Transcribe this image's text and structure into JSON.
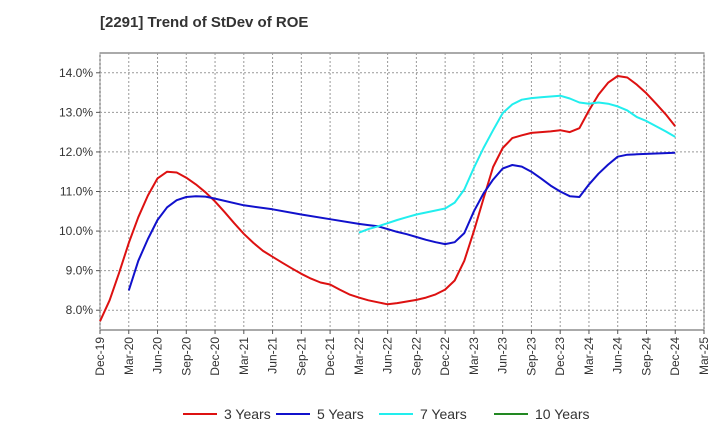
{
  "chart_data": {
    "type": "line",
    "title": "[2291]  Trend of StDev of ROE",
    "xlabel": "",
    "ylabel": "",
    "ylim": [
      7.5,
      14.5
    ],
    "yticks": [
      8.0,
      9.0,
      10.0,
      11.0,
      12.0,
      13.0,
      14.0
    ],
    "ytick_labels": [
      "8.0%",
      "9.0%",
      "10.0%",
      "11.0%",
      "12.0%",
      "13.0%",
      "14.0%"
    ],
    "xticks": [
      "Dec-19",
      "Mar-20",
      "Jun-20",
      "Sep-20",
      "Dec-20",
      "Mar-21",
      "Jun-21",
      "Sep-21",
      "Dec-21",
      "Mar-22",
      "Jun-22",
      "Sep-22",
      "Dec-22",
      "Mar-23",
      "Jun-23",
      "Sep-23",
      "Dec-23",
      "Mar-24",
      "Jun-24",
      "Sep-24",
      "Dec-24",
      "Mar-25"
    ],
    "grid": true,
    "legend_position": "bottom",
    "series": [
      {
        "name": "3 Years",
        "color": "#dd1111",
        "x": [
          "2019-12",
          "2020-01",
          "2020-02",
          "2020-03",
          "2020-04",
          "2020-05",
          "2020-06",
          "2020-07",
          "2020-08",
          "2020-09",
          "2020-10",
          "2020-11",
          "2020-12",
          "2021-01",
          "2021-02",
          "2021-03",
          "2021-04",
          "2021-05",
          "2021-06",
          "2021-07",
          "2021-08",
          "2021-09",
          "2021-10",
          "2021-11",
          "2021-12",
          "2022-01",
          "2022-02",
          "2022-03",
          "2022-04",
          "2022-05",
          "2022-06",
          "2022-07",
          "2022-08",
          "2022-09",
          "2022-10",
          "2022-11",
          "2022-12",
          "2023-01",
          "2023-02",
          "2023-03",
          "2023-04",
          "2023-05",
          "2023-06",
          "2023-07",
          "2023-08",
          "2023-09",
          "2023-10",
          "2023-11",
          "2023-12",
          "2024-01",
          "2024-02",
          "2024-03",
          "2024-04",
          "2024-05",
          "2024-06",
          "2024-07",
          "2024-08",
          "2024-09",
          "2024-10",
          "2024-11",
          "2024-12"
        ],
        "values": [
          7.72,
          8.25,
          8.95,
          9.7,
          10.35,
          10.9,
          11.33,
          11.5,
          11.48,
          11.35,
          11.18,
          10.98,
          10.75,
          10.48,
          10.2,
          9.93,
          9.7,
          9.5,
          9.35,
          9.2,
          9.06,
          8.92,
          8.8,
          8.7,
          8.65,
          8.52,
          8.4,
          8.32,
          8.25,
          8.2,
          8.15,
          8.18,
          8.22,
          8.26,
          8.32,
          8.4,
          8.52,
          8.75,
          9.25,
          10.0,
          10.82,
          11.62,
          12.1,
          12.35,
          12.42,
          12.48,
          12.5,
          12.52,
          12.55,
          12.5,
          12.6,
          13.05,
          13.45,
          13.75,
          13.92,
          13.88,
          13.7,
          13.48,
          13.22,
          12.95,
          12.65
        ]
      },
      {
        "name": "5 Years",
        "color": "#1111cc",
        "x": [
          "2020-03",
          "2020-04",
          "2020-05",
          "2020-06",
          "2020-07",
          "2020-08",
          "2020-09",
          "2020-10",
          "2020-11",
          "2020-12",
          "2021-03",
          "2021-06",
          "2021-09",
          "2021-12",
          "2022-03",
          "2022-04",
          "2022-05",
          "2022-06",
          "2022-07",
          "2022-08",
          "2022-09",
          "2022-10",
          "2022-11",
          "2022-12",
          "2023-01",
          "2023-02",
          "2023-03",
          "2023-04",
          "2023-05",
          "2023-06",
          "2023-07",
          "2023-08",
          "2023-09",
          "2023-10",
          "2023-11",
          "2023-12",
          "2024-01",
          "2024-02",
          "2024-03",
          "2024-04",
          "2024-05",
          "2024-06",
          "2024-07",
          "2024-08",
          "2024-09",
          "2024-10",
          "2024-11",
          "2024-12"
        ],
        "values": [
          8.5,
          9.25,
          9.8,
          10.28,
          10.6,
          10.78,
          10.86,
          10.88,
          10.87,
          10.82,
          10.65,
          10.55,
          10.42,
          10.3,
          10.18,
          10.15,
          10.12,
          10.05,
          9.98,
          9.92,
          9.85,
          9.78,
          9.72,
          9.67,
          9.72,
          9.95,
          10.5,
          10.95,
          11.3,
          11.58,
          11.67,
          11.63,
          11.5,
          11.33,
          11.15,
          11.0,
          10.88,
          10.86,
          11.18,
          11.45,
          11.68,
          11.88,
          11.93,
          11.94,
          11.95,
          11.96,
          11.97,
          11.98
        ]
      },
      {
        "name": "7 Years",
        "color": "#22eeee",
        "x": [
          "2022-03",
          "2022-04",
          "2022-05",
          "2022-06",
          "2022-07",
          "2022-08",
          "2022-09",
          "2022-10",
          "2022-11",
          "2022-12",
          "2023-01",
          "2023-02",
          "2023-03",
          "2023-04",
          "2023-05",
          "2023-06",
          "2023-07",
          "2023-08",
          "2023-09",
          "2023-10",
          "2023-11",
          "2023-12",
          "2024-01",
          "2024-02",
          "2024-03",
          "2024-04",
          "2024-05",
          "2024-06",
          "2024-07",
          "2024-08",
          "2024-09",
          "2024-10",
          "2024-11",
          "2024-12"
        ],
        "values": [
          9.96,
          10.05,
          10.12,
          10.2,
          10.28,
          10.35,
          10.42,
          10.47,
          10.52,
          10.57,
          10.72,
          11.05,
          11.6,
          12.1,
          12.55,
          12.98,
          13.2,
          13.32,
          13.36,
          13.38,
          13.4,
          13.42,
          13.35,
          13.25,
          13.22,
          13.25,
          13.22,
          13.15,
          13.05,
          12.88,
          12.78,
          12.65,
          12.52,
          12.38
        ]
      },
      {
        "name": "10 Years",
        "color": "#228822",
        "x": [],
        "values": []
      }
    ]
  }
}
